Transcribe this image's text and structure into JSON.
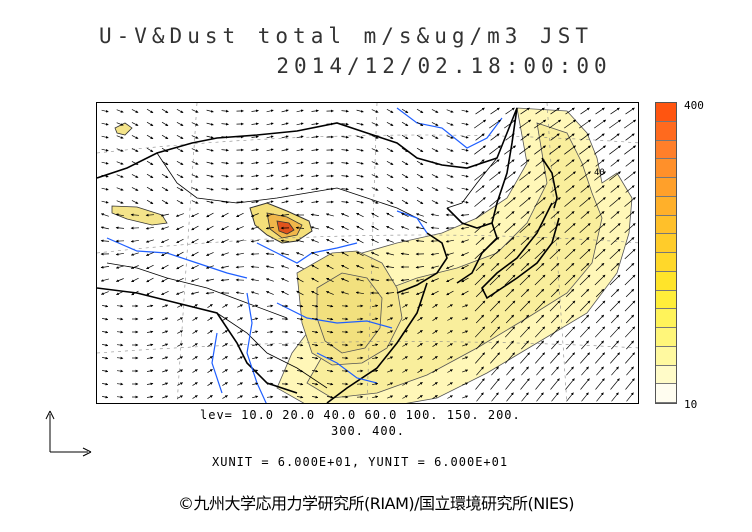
{
  "title": {
    "line1": "U-V&Dust total m/s&ug/m3 JST",
    "line2": "2014/12/02.18:00:00"
  },
  "colorbar": {
    "max_label": "400",
    "min_label": "10",
    "levels": [
      10,
      20,
      40,
      60,
      100,
      150,
      200,
      300,
      400
    ],
    "colors": [
      "#fffdf0",
      "#fffbc8",
      "#fff9a0",
      "#fff67a",
      "#fff35a",
      "#ffee3a",
      "#ffe42a",
      "#ffd82a",
      "#ffcc2a",
      "#ffc02a",
      "#ffb02a",
      "#ffa02a",
      "#ff902a",
      "#ff7f2a",
      "#ff6a1e",
      "#ff5510"
    ]
  },
  "legend_text": {
    "levels_line1": "lev= 10.0 20.0 40.0 60.0 100. 150. 200.",
    "levels_line2": "300. 400.",
    "units": "XUNIT = 6.000E+01, YUNIT = 6.000E+01"
  },
  "copyright": "©九州大学応用力学研究所(RIAM)/国立環境研究所(NIES)",
  "map": {
    "coastline_color": "#000000",
    "river_color": "#1f5fff",
    "dust_light_color": "#fff7b8",
    "dust_mid_color": "#f2e27a",
    "dust_core_color": "#e0531c",
    "contour_labels": [
      "40"
    ]
  },
  "chart_data": {
    "type": "heatmap",
    "variable": "Dust total",
    "units": "ug/m3",
    "wind_units": "m/s",
    "timestamp": "2014/12/02.18:00:00",
    "timezone": "JST",
    "contour_levels": [
      10,
      20,
      40,
      60,
      100,
      150,
      200,
      300,
      400
    ],
    "colorbar_range": [
      10,
      400
    ]
  }
}
